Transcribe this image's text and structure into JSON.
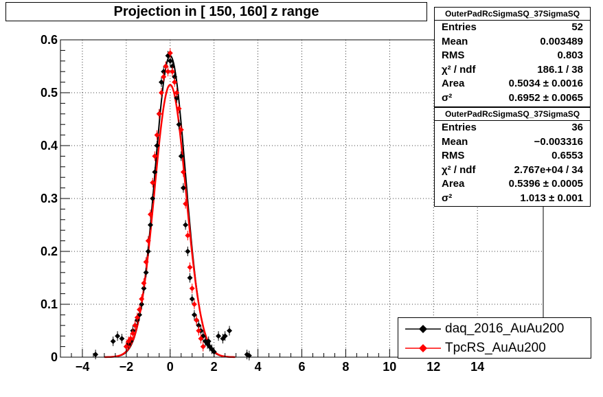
{
  "chart_data": {
    "type": "scatter",
    "title": "Projection in [ 150, 160] z range",
    "xlabel": "",
    "ylabel": "",
    "xlim": [
      -5,
      17
    ],
    "ylim": [
      0,
      0.6
    ],
    "x_ticks": [
      -4,
      -2,
      0,
      2,
      4,
      6,
      8,
      10,
      12,
      14
    ],
    "x_tick_labels": [
      "−4",
      "−2",
      "0",
      "2",
      "4",
      "6",
      "8",
      "10",
      "12",
      "14"
    ],
    "y_ticks": [
      0,
      0.1,
      0.2,
      0.3,
      0.4,
      0.5,
      0.6
    ],
    "y_tick_labels": [
      "0",
      "0.1",
      "0.2",
      "0.3",
      "0.4",
      "0.5",
      "0.6"
    ],
    "grid": true,
    "legend_position": "bottom-right",
    "series": [
      {
        "name": "daq_2016_AuAu200",
        "color": "#000000",
        "x": [
          -3.4,
          -2.6,
          -2.4,
          -2.2,
          -2.0,
          -1.9,
          -1.8,
          -1.7,
          -1.6,
          -1.5,
          -1.4,
          -1.3,
          -1.2,
          -1.1,
          -1.0,
          -0.9,
          -0.8,
          -0.7,
          -0.6,
          -0.5,
          -0.4,
          -0.3,
          -0.2,
          -0.1,
          0.0,
          0.1,
          0.2,
          0.3,
          0.4,
          0.5,
          0.6,
          0.7,
          0.8,
          0.9,
          1.0,
          1.1,
          1.2,
          1.3,
          1.4,
          1.5,
          1.6,
          1.7,
          1.8,
          1.9,
          2.0,
          2.2,
          2.4,
          2.5,
          3.5,
          3.6,
          2.7,
          1.75
        ],
        "y": [
          0.005,
          0.03,
          0.04,
          0.035,
          0.02,
          0.025,
          0.03,
          0.05,
          0.06,
          0.07,
          0.08,
          0.1,
          0.13,
          0.16,
          0.2,
          0.25,
          0.3,
          0.35,
          0.4,
          0.46,
          0.52,
          0.54,
          0.55,
          0.57,
          0.56,
          0.55,
          0.53,
          0.49,
          0.44,
          0.38,
          0.32,
          0.25,
          0.2,
          0.15,
          0.11,
          0.08,
          0.07,
          0.06,
          0.05,
          0.04,
          0.03,
          0.025,
          0.02,
          0.015,
          0.01,
          0.04,
          0.035,
          0.04,
          0.005,
          0.003,
          0.05,
          0.03
        ],
        "fit": {
          "amplitude": 0.57,
          "mean": 0.0,
          "sigma": 0.7
        }
      },
      {
        "name": "TpcRS_AuAu200",
        "color": "#ff0000",
        "x": [
          -2.0,
          -1.9,
          -1.8,
          -1.7,
          -1.6,
          -1.5,
          -1.4,
          -1.3,
          -1.2,
          -1.1,
          -1.0,
          -0.9,
          -0.8,
          -0.7,
          -0.6,
          -0.5,
          -0.4,
          -0.3,
          -0.2,
          -0.1,
          0.0,
          0.1,
          0.2,
          0.3,
          0.4,
          0.5,
          0.6,
          0.7,
          0.8,
          0.9,
          1.0,
          1.1,
          1.2,
          1.3,
          1.4,
          1.5
        ],
        "y": [
          0.02,
          0.03,
          0.035,
          0.045,
          0.06,
          0.075,
          0.09,
          0.11,
          0.14,
          0.18,
          0.22,
          0.27,
          0.33,
          0.38,
          0.42,
          0.46,
          0.5,
          0.53,
          0.55,
          0.54,
          0.575,
          0.54,
          0.52,
          0.5,
          0.47,
          0.43,
          0.35,
          0.29,
          0.23,
          0.17,
          0.13,
          0.1,
          0.07,
          0.05,
          0.035,
          0.02
        ],
        "fit": {
          "amplitude": 0.515,
          "mean": 0.0,
          "sigma": 0.72
        }
      }
    ]
  },
  "stats_boxes": [
    {
      "name": "OuterPadRcSigmaSQ_37SigmaSQ",
      "rows": [
        {
          "label": "Entries",
          "value": "52"
        },
        {
          "label": "Mean",
          "value": "0.003489"
        },
        {
          "label": "RMS",
          "value": "0.803"
        },
        {
          "label": "χ² / ndf",
          "value": "186.1 / 38"
        },
        {
          "label": "Area",
          "value": "0.5034 ± 0.0016"
        },
        {
          "label": "σ²",
          "value": "0.6952 ± 0.0065"
        }
      ]
    },
    {
      "name": "OuterPadRcSigmaSQ_37SigmaSQ",
      "rows": [
        {
          "label": "Entries",
          "value": "36"
        },
        {
          "label": "Mean",
          "value": "−0.003316"
        },
        {
          "label": "RMS",
          "value": "0.6553"
        },
        {
          "label": "χ² / ndf",
          "value": "2.767e+04 / 34"
        },
        {
          "label": "Area",
          "value": "0.5396 ± 0.0005"
        },
        {
          "label": "σ²",
          "value": "1.013 ± 0.001"
        }
      ]
    }
  ]
}
